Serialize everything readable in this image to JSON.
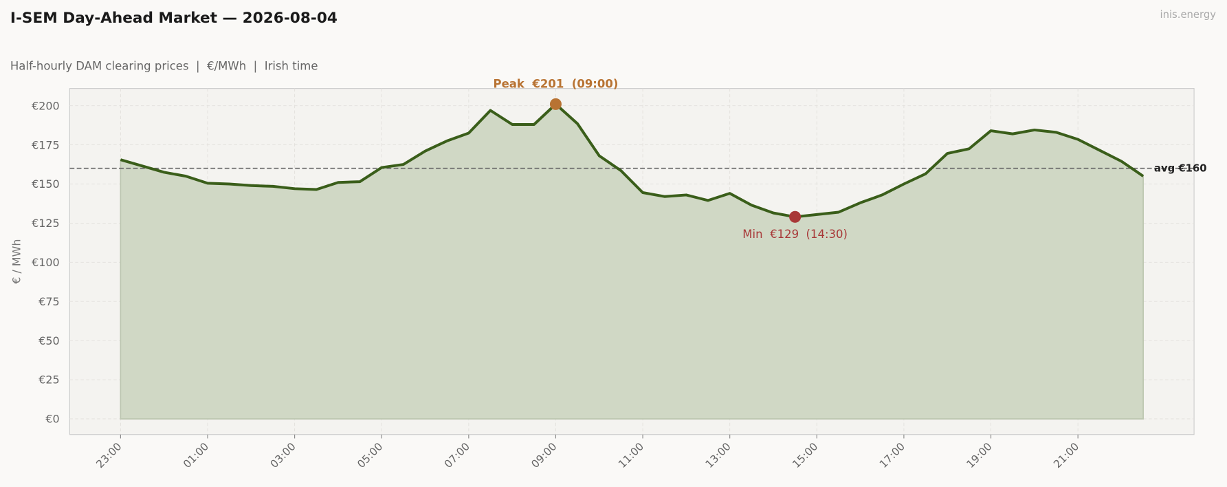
{
  "chart_data": {
    "type": "area_line",
    "title": "I-SEM Day-Ahead Market — 2026-08-04",
    "subtitle": "Half-hourly DAM clearing prices  |  €/MWh  |  Irish time",
    "watermark": "inis.energy",
    "ylabel": "€ / MWh",
    "categories": [
      "23:00",
      null,
      null,
      null,
      "01:00",
      null,
      null,
      null,
      "03:00",
      null,
      null,
      null,
      "05:00",
      null,
      null,
      null,
      "07:00",
      null,
      null,
      null,
      "09:00",
      null,
      null,
      null,
      "11:00",
      null,
      null,
      null,
      "13:00",
      null,
      null,
      null,
      "15:00",
      null,
      null,
      null,
      "17:00",
      null,
      null,
      null,
      "19:00",
      null,
      null,
      null,
      "21:00",
      null,
      null,
      null
    ],
    "values": [
      165.5,
      161.5,
      157.5,
      155,
      150.5,
      150,
      149,
      148.5,
      147,
      146.5,
      151,
      151.5,
      160.5,
      162.5,
      171,
      177.5,
      182.5,
      197,
      188,
      188,
      201,
      188.5,
      168,
      158.5,
      144.5,
      142,
      143,
      139.5,
      144,
      136.5,
      131.5,
      129,
      130.5,
      132,
      138,
      143,
      150,
      156.5,
      169.5,
      172.5,
      184,
      182,
      184.5,
      183,
      178.5,
      171.5,
      164.5,
      155
    ],
    "color": "#3a5e1a",
    "fill_color": "#d0d8c5",
    "ylim": [
      -10,
      211
    ],
    "yticks": [
      {
        "value": 0,
        "label": "€0"
      },
      {
        "value": 25,
        "label": "€25"
      },
      {
        "value": 50,
        "label": "€50"
      },
      {
        "value": 75,
        "label": "€75"
      },
      {
        "value": 100,
        "label": "€100"
      },
      {
        "value": 125,
        "label": "€125"
      },
      {
        "value": 150,
        "label": "€150"
      },
      {
        "value": 175,
        "label": "€175"
      },
      {
        "value": 200,
        "label": "€200"
      }
    ],
    "grid": true,
    "avg_line": {
      "value": 160,
      "label": "avg €160"
    },
    "peak": {
      "label": "Peak  €201  (09:00)",
      "color": "#b87333"
    },
    "min": {
      "label": "Min  €129  (14:30)",
      "color": "#a83838"
    }
  }
}
